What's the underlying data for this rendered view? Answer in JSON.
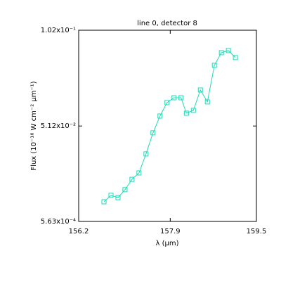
{
  "chart_data": {
    "type": "line",
    "title": "line 0, detector 8",
    "x_label": "λ (µm)",
    "y_label": "Flux (10⁻¹⁸ W cm⁻² µm⁻¹)",
    "xlim": [
      156.2,
      159.5
    ],
    "xticks": [
      156.2,
      157.9,
      159.5
    ],
    "ylim": [
      0.000563,
      0.102
    ],
    "yticks": [
      {
        "value": 0.000563,
        "label": "5.63x10⁻⁴"
      },
      {
        "value": 0.0512,
        "label": "5.12x10⁻²"
      },
      {
        "value": 0.102,
        "label": "1.02x10⁻¹"
      }
    ],
    "series": [
      {
        "color": "#20d8b8",
        "x": [
          156.67,
          156.8,
          156.93,
          157.06,
          157.19,
          157.32,
          157.45,
          157.58,
          157.71,
          157.84,
          157.97,
          158.1,
          158.2,
          158.33,
          158.46,
          158.59,
          158.72,
          158.85,
          158.98,
          159.11
        ],
        "values": [
          0.011,
          0.0144,
          0.0132,
          0.0174,
          0.0229,
          0.0263,
          0.0364,
          0.0476,
          0.0565,
          0.0636,
          0.0662,
          0.0662,
          0.058,
          0.0595,
          0.0703,
          0.064,
          0.0834,
          0.0901,
          0.0912,
          0.0875
        ]
      }
    ]
  }
}
